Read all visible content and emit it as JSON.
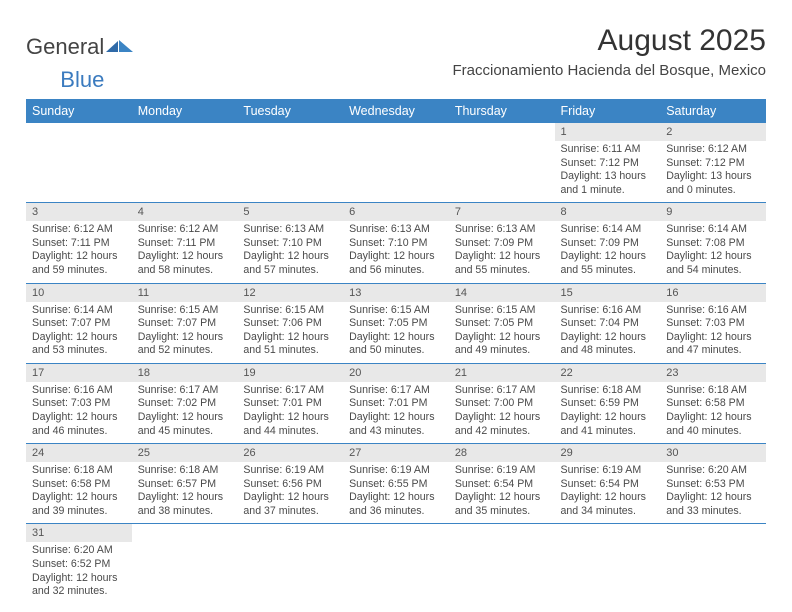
{
  "logo": {
    "text1": "General",
    "text2": "Blue"
  },
  "title": "August 2025",
  "location": "Fraccionamiento Hacienda del Bosque, Mexico",
  "colors": {
    "header_bg": "#3b84c4",
    "header_fg": "#ffffff",
    "daynum_bg": "#e8e8e8",
    "text": "#4a4a4a",
    "rule": "#3b84c4"
  },
  "weekdays": [
    "Sunday",
    "Monday",
    "Tuesday",
    "Wednesday",
    "Thursday",
    "Friday",
    "Saturday"
  ],
  "weeks": [
    [
      null,
      null,
      null,
      null,
      null,
      {
        "n": "1",
        "sr": "6:11 AM",
        "ss": "7:12 PM",
        "dl": "13 hours and 1 minute."
      },
      {
        "n": "2",
        "sr": "6:12 AM",
        "ss": "7:12 PM",
        "dl": "13 hours and 0 minutes."
      }
    ],
    [
      {
        "n": "3",
        "sr": "6:12 AM",
        "ss": "7:11 PM",
        "dl": "12 hours and 59 minutes."
      },
      {
        "n": "4",
        "sr": "6:12 AM",
        "ss": "7:11 PM",
        "dl": "12 hours and 58 minutes."
      },
      {
        "n": "5",
        "sr": "6:13 AM",
        "ss": "7:10 PM",
        "dl": "12 hours and 57 minutes."
      },
      {
        "n": "6",
        "sr": "6:13 AM",
        "ss": "7:10 PM",
        "dl": "12 hours and 56 minutes."
      },
      {
        "n": "7",
        "sr": "6:13 AM",
        "ss": "7:09 PM",
        "dl": "12 hours and 55 minutes."
      },
      {
        "n": "8",
        "sr": "6:14 AM",
        "ss": "7:09 PM",
        "dl": "12 hours and 55 minutes."
      },
      {
        "n": "9",
        "sr": "6:14 AM",
        "ss": "7:08 PM",
        "dl": "12 hours and 54 minutes."
      }
    ],
    [
      {
        "n": "10",
        "sr": "6:14 AM",
        "ss": "7:07 PM",
        "dl": "12 hours and 53 minutes."
      },
      {
        "n": "11",
        "sr": "6:15 AM",
        "ss": "7:07 PM",
        "dl": "12 hours and 52 minutes."
      },
      {
        "n": "12",
        "sr": "6:15 AM",
        "ss": "7:06 PM",
        "dl": "12 hours and 51 minutes."
      },
      {
        "n": "13",
        "sr": "6:15 AM",
        "ss": "7:05 PM",
        "dl": "12 hours and 50 minutes."
      },
      {
        "n": "14",
        "sr": "6:15 AM",
        "ss": "7:05 PM",
        "dl": "12 hours and 49 minutes."
      },
      {
        "n": "15",
        "sr": "6:16 AM",
        "ss": "7:04 PM",
        "dl": "12 hours and 48 minutes."
      },
      {
        "n": "16",
        "sr": "6:16 AM",
        "ss": "7:03 PM",
        "dl": "12 hours and 47 minutes."
      }
    ],
    [
      {
        "n": "17",
        "sr": "6:16 AM",
        "ss": "7:03 PM",
        "dl": "12 hours and 46 minutes."
      },
      {
        "n": "18",
        "sr": "6:17 AM",
        "ss": "7:02 PM",
        "dl": "12 hours and 45 minutes."
      },
      {
        "n": "19",
        "sr": "6:17 AM",
        "ss": "7:01 PM",
        "dl": "12 hours and 44 minutes."
      },
      {
        "n": "20",
        "sr": "6:17 AM",
        "ss": "7:01 PM",
        "dl": "12 hours and 43 minutes."
      },
      {
        "n": "21",
        "sr": "6:17 AM",
        "ss": "7:00 PM",
        "dl": "12 hours and 42 minutes."
      },
      {
        "n": "22",
        "sr": "6:18 AM",
        "ss": "6:59 PM",
        "dl": "12 hours and 41 minutes."
      },
      {
        "n": "23",
        "sr": "6:18 AM",
        "ss": "6:58 PM",
        "dl": "12 hours and 40 minutes."
      }
    ],
    [
      {
        "n": "24",
        "sr": "6:18 AM",
        "ss": "6:58 PM",
        "dl": "12 hours and 39 minutes."
      },
      {
        "n": "25",
        "sr": "6:18 AM",
        "ss": "6:57 PM",
        "dl": "12 hours and 38 minutes."
      },
      {
        "n": "26",
        "sr": "6:19 AM",
        "ss": "6:56 PM",
        "dl": "12 hours and 37 minutes."
      },
      {
        "n": "27",
        "sr": "6:19 AM",
        "ss": "6:55 PM",
        "dl": "12 hours and 36 minutes."
      },
      {
        "n": "28",
        "sr": "6:19 AM",
        "ss": "6:54 PM",
        "dl": "12 hours and 35 minutes."
      },
      {
        "n": "29",
        "sr": "6:19 AM",
        "ss": "6:54 PM",
        "dl": "12 hours and 34 minutes."
      },
      {
        "n": "30",
        "sr": "6:20 AM",
        "ss": "6:53 PM",
        "dl": "12 hours and 33 minutes."
      }
    ],
    [
      {
        "n": "31",
        "sr": "6:20 AM",
        "ss": "6:52 PM",
        "dl": "12 hours and 32 minutes."
      },
      null,
      null,
      null,
      null,
      null,
      null
    ]
  ],
  "labels": {
    "sunrise": "Sunrise:",
    "sunset": "Sunset:",
    "daylight": "Daylight:"
  }
}
